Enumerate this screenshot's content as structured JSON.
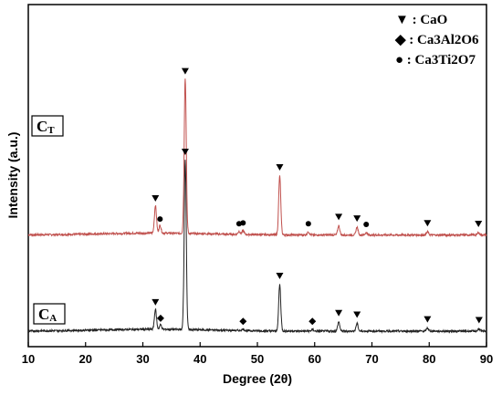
{
  "chart_data": {
    "type": "line",
    "xlabel": "Degree (2θ)",
    "ylabel": "Intensity (a.u.)",
    "xlim": [
      10,
      90
    ],
    "x_ticks": [
      10,
      20,
      30,
      40,
      50,
      60,
      70,
      80,
      90
    ],
    "grid": false,
    "legend_position": "top-right",
    "legend": [
      {
        "marker": "triangle-down",
        "text": "▼ : CaO"
      },
      {
        "marker": "diamond",
        "text": "◆ : Ca3Al2O6"
      },
      {
        "marker": "circle",
        "text": "● : Ca3Ti2O7"
      }
    ],
    "series": [
      {
        "label": "CT",
        "label_main": "C",
        "label_sub": "T",
        "color": "#c0504d",
        "baseline": 0.62,
        "peaks": [
          {
            "x": 32.2,
            "h": 0.18,
            "phase": "CaO"
          },
          {
            "x": 33.0,
            "h": 0.05,
            "phase": "Ca3Ti2O7"
          },
          {
            "x": 37.4,
            "h": 1.0,
            "phase": "CaO"
          },
          {
            "x": 46.8,
            "h": 0.02,
            "phase": "Ca3Ti2O7"
          },
          {
            "x": 47.5,
            "h": 0.025,
            "phase": "Ca3Ti2O7"
          },
          {
            "x": 53.9,
            "h": 0.38,
            "phase": "CaO"
          },
          {
            "x": 58.9,
            "h": 0.02,
            "phase": "Ca3Ti2O7"
          },
          {
            "x": 64.2,
            "h": 0.06,
            "phase": "CaO"
          },
          {
            "x": 67.4,
            "h": 0.05,
            "phase": "CaO"
          },
          {
            "x": 69.0,
            "h": 0.015,
            "phase": "Ca3Ti2O7"
          },
          {
            "x": 79.7,
            "h": 0.02,
            "phase": "CaO"
          },
          {
            "x": 88.6,
            "h": 0.015,
            "phase": "CaO"
          }
        ]
      },
      {
        "label": "CA",
        "label_main": "C",
        "label_sub": "A",
        "color": "#222222",
        "baseline": 0.0,
        "peaks": [
          {
            "x": 32.2,
            "h": 0.13,
            "phase": "CaO"
          },
          {
            "x": 33.1,
            "h": 0.03,
            "phase": "Ca3Al2O6"
          },
          {
            "x": 37.4,
            "h": 1.1,
            "phase": "CaO"
          },
          {
            "x": 47.5,
            "h": 0.01,
            "phase": "Ca3Al2O6"
          },
          {
            "x": 53.9,
            "h": 0.3,
            "phase": "CaO"
          },
          {
            "x": 59.6,
            "h": 0.01,
            "phase": "Ca3Al2O6"
          },
          {
            "x": 64.2,
            "h": 0.06,
            "phase": "CaO"
          },
          {
            "x": 67.4,
            "h": 0.05,
            "phase": "CaO"
          },
          {
            "x": 79.7,
            "h": 0.02,
            "phase": "CaO"
          },
          {
            "x": 88.7,
            "h": 0.015,
            "phase": "CaO"
          }
        ]
      }
    ]
  }
}
